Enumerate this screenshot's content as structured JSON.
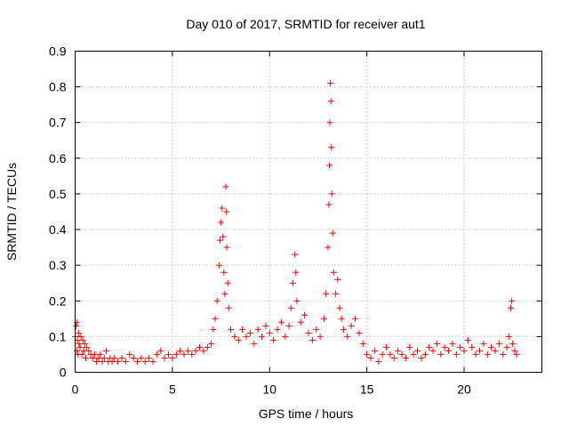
{
  "chart_data": {
    "type": "scatter",
    "title": "Day 010 of 2017, SRMTID for receiver aut1",
    "xlabel": "GPS time / hours",
    "ylabel": "SRMTID / TECUs",
    "xlim": [
      0,
      24
    ],
    "ylim": [
      0,
      0.9
    ],
    "xticks": [
      0,
      5,
      10,
      15,
      20
    ],
    "yticks": [
      0,
      0.1,
      0.2,
      0.3,
      0.4,
      0.5,
      0.6,
      0.7,
      0.8,
      0.9
    ],
    "ytick_labels": [
      "0",
      "0.1",
      "0.2",
      "0.3",
      "0.4",
      "0.5",
      "0.6",
      "0.7",
      "0.8",
      "0.9"
    ],
    "grid": true,
    "marker": "+",
    "series": [
      {
        "name": "aut1",
        "color": "#ff0000",
        "points": [
          [
            0.0,
            0.1
          ],
          [
            0.05,
            0.13
          ],
          [
            0.08,
            0.06
          ],
          [
            0.1,
            0.14
          ],
          [
            0.12,
            0.09
          ],
          [
            0.15,
            0.05
          ],
          [
            0.18,
            0.11
          ],
          [
            0.2,
            0.08
          ],
          [
            0.25,
            0.07
          ],
          [
            0.3,
            0.1
          ],
          [
            0.35,
            0.05
          ],
          [
            0.4,
            0.09
          ],
          [
            0.45,
            0.06
          ],
          [
            0.5,
            0.08
          ],
          [
            0.55,
            0.04
          ],
          [
            0.6,
            0.07
          ],
          [
            0.7,
            0.06
          ],
          [
            0.8,
            0.05
          ],
          [
            0.9,
            0.04
          ],
          [
            1.0,
            0.05
          ],
          [
            1.1,
            0.03
          ],
          [
            1.2,
            0.04
          ],
          [
            1.3,
            0.05
          ],
          [
            1.4,
            0.03
          ],
          [
            1.5,
            0.04
          ],
          [
            1.6,
            0.06
          ],
          [
            1.7,
            0.03
          ],
          [
            1.8,
            0.04
          ],
          [
            1.9,
            0.03
          ],
          [
            2.0,
            0.04
          ],
          [
            2.2,
            0.03
          ],
          [
            2.4,
            0.04
          ],
          [
            2.6,
            0.03
          ],
          [
            2.8,
            0.05
          ],
          [
            3.0,
            0.04
          ],
          [
            3.2,
            0.03
          ],
          [
            3.4,
            0.04
          ],
          [
            3.6,
            0.03
          ],
          [
            3.8,
            0.04
          ],
          [
            4.0,
            0.03
          ],
          [
            4.2,
            0.05
          ],
          [
            4.4,
            0.06
          ],
          [
            4.6,
            0.04
          ],
          [
            4.8,
            0.05
          ],
          [
            5.0,
            0.04
          ],
          [
            5.2,
            0.05
          ],
          [
            5.4,
            0.06
          ],
          [
            5.6,
            0.05
          ],
          [
            5.8,
            0.06
          ],
          [
            6.0,
            0.05
          ],
          [
            6.2,
            0.06
          ],
          [
            6.4,
            0.07
          ],
          [
            6.6,
            0.06
          ],
          [
            6.8,
            0.07
          ],
          [
            7.0,
            0.08
          ],
          [
            7.1,
            0.12
          ],
          [
            7.2,
            0.15
          ],
          [
            7.3,
            0.2
          ],
          [
            7.4,
            0.3
          ],
          [
            7.45,
            0.37
          ],
          [
            7.5,
            0.42
          ],
          [
            7.55,
            0.46
          ],
          [
            7.6,
            0.38
          ],
          [
            7.65,
            0.28
          ],
          [
            7.7,
            0.22
          ],
          [
            7.75,
            0.52
          ],
          [
            7.78,
            0.45
          ],
          [
            7.8,
            0.35
          ],
          [
            7.85,
            0.25
          ],
          [
            7.9,
            0.18
          ],
          [
            8.0,
            0.12
          ],
          [
            8.2,
            0.1
          ],
          [
            8.4,
            0.09
          ],
          [
            8.6,
            0.12
          ],
          [
            8.8,
            0.1
          ],
          [
            9.0,
            0.11
          ],
          [
            9.2,
            0.08
          ],
          [
            9.4,
            0.12
          ],
          [
            9.6,
            0.1
          ],
          [
            9.8,
            0.13
          ],
          [
            10.0,
            0.11
          ],
          [
            10.2,
            0.09
          ],
          [
            10.4,
            0.12
          ],
          [
            10.6,
            0.14
          ],
          [
            10.8,
            0.1
          ],
          [
            11.0,
            0.13
          ],
          [
            11.1,
            0.18
          ],
          [
            11.2,
            0.25
          ],
          [
            11.3,
            0.33
          ],
          [
            11.35,
            0.28
          ],
          [
            11.4,
            0.2
          ],
          [
            11.6,
            0.14
          ],
          [
            11.8,
            0.16
          ],
          [
            12.0,
            0.11
          ],
          [
            12.2,
            0.09
          ],
          [
            12.4,
            0.12
          ],
          [
            12.6,
            0.1
          ],
          [
            12.8,
            0.15
          ],
          [
            12.9,
            0.22
          ],
          [
            13.0,
            0.35
          ],
          [
            13.05,
            0.47
          ],
          [
            13.08,
            0.58
          ],
          [
            13.1,
            0.7
          ],
          [
            13.12,
            0.81
          ],
          [
            13.15,
            0.76
          ],
          [
            13.18,
            0.63
          ],
          [
            13.2,
            0.5
          ],
          [
            13.25,
            0.39
          ],
          [
            13.3,
            0.28
          ],
          [
            13.4,
            0.22
          ],
          [
            13.5,
            0.26
          ],
          [
            13.6,
            0.18
          ],
          [
            13.7,
            0.15
          ],
          [
            13.8,
            0.12
          ],
          [
            14.0,
            0.1
          ],
          [
            14.2,
            0.13
          ],
          [
            14.4,
            0.15
          ],
          [
            14.6,
            0.11
          ],
          [
            14.8,
            0.08
          ],
          [
            15.0,
            0.05
          ],
          [
            15.2,
            0.04
          ],
          [
            15.4,
            0.06
          ],
          [
            15.6,
            0.03
          ],
          [
            15.8,
            0.05
          ],
          [
            16.0,
            0.07
          ],
          [
            16.2,
            0.05
          ],
          [
            16.4,
            0.04
          ],
          [
            16.6,
            0.06
          ],
          [
            16.8,
            0.05
          ],
          [
            17.0,
            0.04
          ],
          [
            17.2,
            0.07
          ],
          [
            17.4,
            0.05
          ],
          [
            17.6,
            0.06
          ],
          [
            17.8,
            0.04
          ],
          [
            18.0,
            0.05
          ],
          [
            18.2,
            0.07
          ],
          [
            18.4,
            0.06
          ],
          [
            18.6,
            0.08
          ],
          [
            18.8,
            0.05
          ],
          [
            19.0,
            0.07
          ],
          [
            19.2,
            0.06
          ],
          [
            19.4,
            0.08
          ],
          [
            19.6,
            0.05
          ],
          [
            19.8,
            0.07
          ],
          [
            20.0,
            0.06
          ],
          [
            20.2,
            0.09
          ],
          [
            20.4,
            0.07
          ],
          [
            20.6,
            0.05
          ],
          [
            20.8,
            0.06
          ],
          [
            21.0,
            0.08
          ],
          [
            21.2,
            0.05
          ],
          [
            21.4,
            0.07
          ],
          [
            21.6,
            0.06
          ],
          [
            21.8,
            0.08
          ],
          [
            22.0,
            0.05
          ],
          [
            22.2,
            0.07
          ],
          [
            22.3,
            0.1
          ],
          [
            22.4,
            0.18
          ],
          [
            22.45,
            0.2
          ],
          [
            22.5,
            0.08
          ],
          [
            22.6,
            0.06
          ],
          [
            22.7,
            0.05
          ]
        ]
      }
    ]
  }
}
